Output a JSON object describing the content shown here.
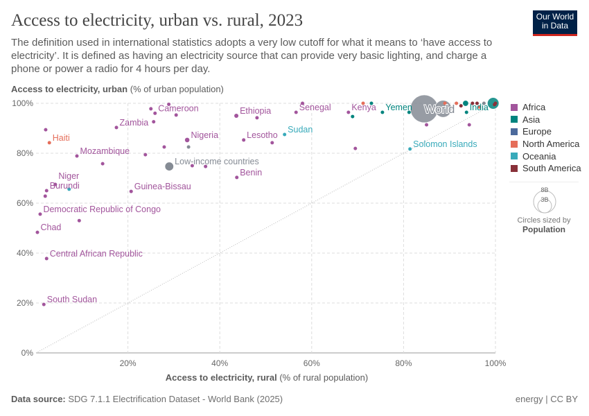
{
  "header": {
    "title": "Access to electricity, urban vs. rural, 2023",
    "subtitle": "The definition used in international statistics adopts a very low cutoff for what it means to ‘have access to electricity’. It is defined as having an electricity source that can provide very basic lighting, and charge a phone or power a radio for 4 hours per day.",
    "logo": "Our World in Data"
  },
  "footer": {
    "source_label": "Data source:",
    "source": "SDG 7.1.1 Electrification Dataset - World Bank (2025)",
    "license": "energy | CC BY"
  },
  "colors": {
    "Africa": "#a2559c",
    "Asia": "#00847e",
    "Europe": "#4c6a9c",
    "North America": "#e56e5a",
    "Oceania": "#38aaba",
    "South America": "#883039",
    "Aggregate": "#858b94"
  },
  "legend": {
    "items": [
      "Africa",
      "Asia",
      "Europe",
      "North America",
      "Oceania",
      "South America"
    ],
    "size_note": "Circles sized by",
    "size_var": "Population",
    "size_ticks": [
      "8B",
      "3B"
    ]
  },
  "chart_data": {
    "type": "scatter",
    "ylabel_bold": "Access to electricity, urban",
    "ylabel_unit": "(% of urban population)",
    "xlabel_bold": "Access to electricity, rural",
    "xlabel_unit": "(% of rural population)",
    "xlim": [
      0,
      100
    ],
    "ylim": [
      0,
      100
    ],
    "xticks": [
      "20%",
      "40%",
      "60%",
      "80%",
      "100%"
    ],
    "yticks": [
      "0%",
      "20%",
      "40%",
      "60%",
      "80%",
      "100%"
    ],
    "grid": true,
    "diagonal": "y=x dotted",
    "legend_position": "right",
    "points": [
      {
        "label": "South Sudan",
        "x": 1.7,
        "y": 19.4,
        "region": "Africa"
      },
      {
        "label": "Central African Republic",
        "x": 2.3,
        "y": 37.8,
        "region": "Africa"
      },
      {
        "label": "Chad",
        "x": 0.3,
        "y": 48.3,
        "region": "Africa"
      },
      {
        "label": "Democratic Republic of Congo",
        "x": 0.9,
        "y": 55.6,
        "region": "Africa"
      },
      {
        "label": "Burundi",
        "x": 2.3,
        "y": 65,
        "region": "Africa"
      },
      {
        "label": "",
        "x": 2,
        "y": 62.8,
        "region": "Africa"
      },
      {
        "label": "Niger",
        "x": 4.2,
        "y": 67.5,
        "region": "Africa"
      },
      {
        "label": "",
        "x": 7.2,
        "y": 65.6,
        "region": "Oceania"
      },
      {
        "label": "",
        "x": 9.4,
        "y": 53,
        "region": "Africa"
      },
      {
        "label": "Guinea-Bissau",
        "x": 20.7,
        "y": 64.7,
        "region": "Africa"
      },
      {
        "label": "Mozambique",
        "x": 8.9,
        "y": 78.9,
        "region": "Africa"
      },
      {
        "label": "",
        "x": 14.5,
        "y": 75.8,
        "region": "Africa"
      },
      {
        "label": "Haiti",
        "x": 2.9,
        "y": 84.2,
        "region": "North America"
      },
      {
        "label": "",
        "x": 2.1,
        "y": 89.4,
        "region": "Africa"
      },
      {
        "label": "Zambia",
        "x": 17.5,
        "y": 90.3,
        "region": "Africa"
      },
      {
        "label": "Cameroon",
        "x": 25.9,
        "y": 96,
        "region": "Africa"
      },
      {
        "label": "",
        "x": 25,
        "y": 97.8,
        "region": "Africa"
      },
      {
        "label": "",
        "x": 25.6,
        "y": 92.6,
        "region": "Africa"
      },
      {
        "label": "",
        "x": 28.9,
        "y": 99.6,
        "region": "Africa"
      },
      {
        "label": "",
        "x": 30.5,
        "y": 95.3,
        "region": "Africa"
      },
      {
        "label": "Nigeria",
        "x": 32.9,
        "y": 85.3,
        "region": "Africa",
        "pop": 0.22
      },
      {
        "label": "",
        "x": 33.2,
        "y": 82.5,
        "region": "Aggregate"
      },
      {
        "label": "",
        "x": 27.9,
        "y": 82.5,
        "region": "Africa"
      },
      {
        "label": "",
        "x": 23.8,
        "y": 79.4,
        "region": "Africa"
      },
      {
        "label": "Low-income countries",
        "x": 29,
        "y": 74.7,
        "region": "Aggregate",
        "pop": 0.7
      },
      {
        "label": "",
        "x": 34,
        "y": 75,
        "region": "Africa"
      },
      {
        "label": "",
        "x": 36.9,
        "y": 74.7,
        "region": "Africa"
      },
      {
        "label": "Benin",
        "x": 43.7,
        "y": 70.3,
        "region": "Africa"
      },
      {
        "label": "Ethiopia",
        "x": 43.6,
        "y": 95,
        "region": "Africa",
        "pop": 0.12
      },
      {
        "label": "",
        "x": 48.1,
        "y": 94.2,
        "region": "Africa"
      },
      {
        "label": "Lesotho",
        "x": 45.2,
        "y": 85.3,
        "region": "Africa"
      },
      {
        "label": "",
        "x": 51.4,
        "y": 84.2,
        "region": "Africa"
      },
      {
        "label": "Sudan",
        "x": 54.1,
        "y": 87.5,
        "region": "Oceania"
      },
      {
        "label": "Senegal",
        "x": 56.6,
        "y": 96.4,
        "region": "Africa"
      },
      {
        "label": "",
        "x": 58,
        "y": 100,
        "region": "Africa"
      },
      {
        "label": "Kenya",
        "x": 68,
        "y": 96.4,
        "region": "Africa"
      },
      {
        "label": "",
        "x": 68.9,
        "y": 94.7,
        "region": "Asia"
      },
      {
        "label": "",
        "x": 71.2,
        "y": 100,
        "region": "North America"
      },
      {
        "label": "",
        "x": 73,
        "y": 100,
        "region": "Asia"
      },
      {
        "label": "Yemen",
        "x": 75.4,
        "y": 96.4,
        "region": "Asia"
      },
      {
        "label": "",
        "x": 69.5,
        "y": 81.9,
        "region": "Africa"
      },
      {
        "label": "Solomon Islands",
        "x": 81.4,
        "y": 81.7,
        "region": "Oceania"
      },
      {
        "label": "",
        "x": 81.2,
        "y": 96.4,
        "region": "Asia"
      },
      {
        "label": "World",
        "x": 84.5,
        "y": 97.8,
        "region": "Aggregate",
        "pop": 8
      },
      {
        "label": "",
        "x": 88.6,
        "y": 97.8,
        "region": "Aggregate",
        "pop": 3
      },
      {
        "label": "",
        "x": 85,
        "y": 91.4,
        "region": "Africa"
      },
      {
        "label": "",
        "x": 94.3,
        "y": 91.4,
        "region": "Africa"
      },
      {
        "label": "",
        "x": 89,
        "y": 100,
        "region": "North America"
      },
      {
        "label": "",
        "x": 91.5,
        "y": 100,
        "region": "North America"
      },
      {
        "label": "",
        "x": 92.5,
        "y": 99,
        "region": "South America"
      },
      {
        "label": "",
        "x": 93.5,
        "y": 100,
        "region": "Asia",
        "pop": 0.3
      },
      {
        "label": "",
        "x": 95,
        "y": 100,
        "region": "South America"
      },
      {
        "label": "",
        "x": 96,
        "y": 100,
        "region": "South America"
      },
      {
        "label": "",
        "x": 96.5,
        "y": 98.5,
        "region": "North America"
      },
      {
        "label": "",
        "x": 97.5,
        "y": 100,
        "region": "Aggregate"
      },
      {
        "label": "India",
        "x": 93.7,
        "y": 96.4,
        "region": "Asia"
      },
      {
        "label": "",
        "x": 99.5,
        "y": 100,
        "region": "Asia",
        "pop": 1.4
      },
      {
        "label": "",
        "x": 99.8,
        "y": 99.5,
        "region": "South America"
      },
      {
        "label": "",
        "x": 100,
        "y": 100,
        "region": "South America"
      }
    ]
  }
}
